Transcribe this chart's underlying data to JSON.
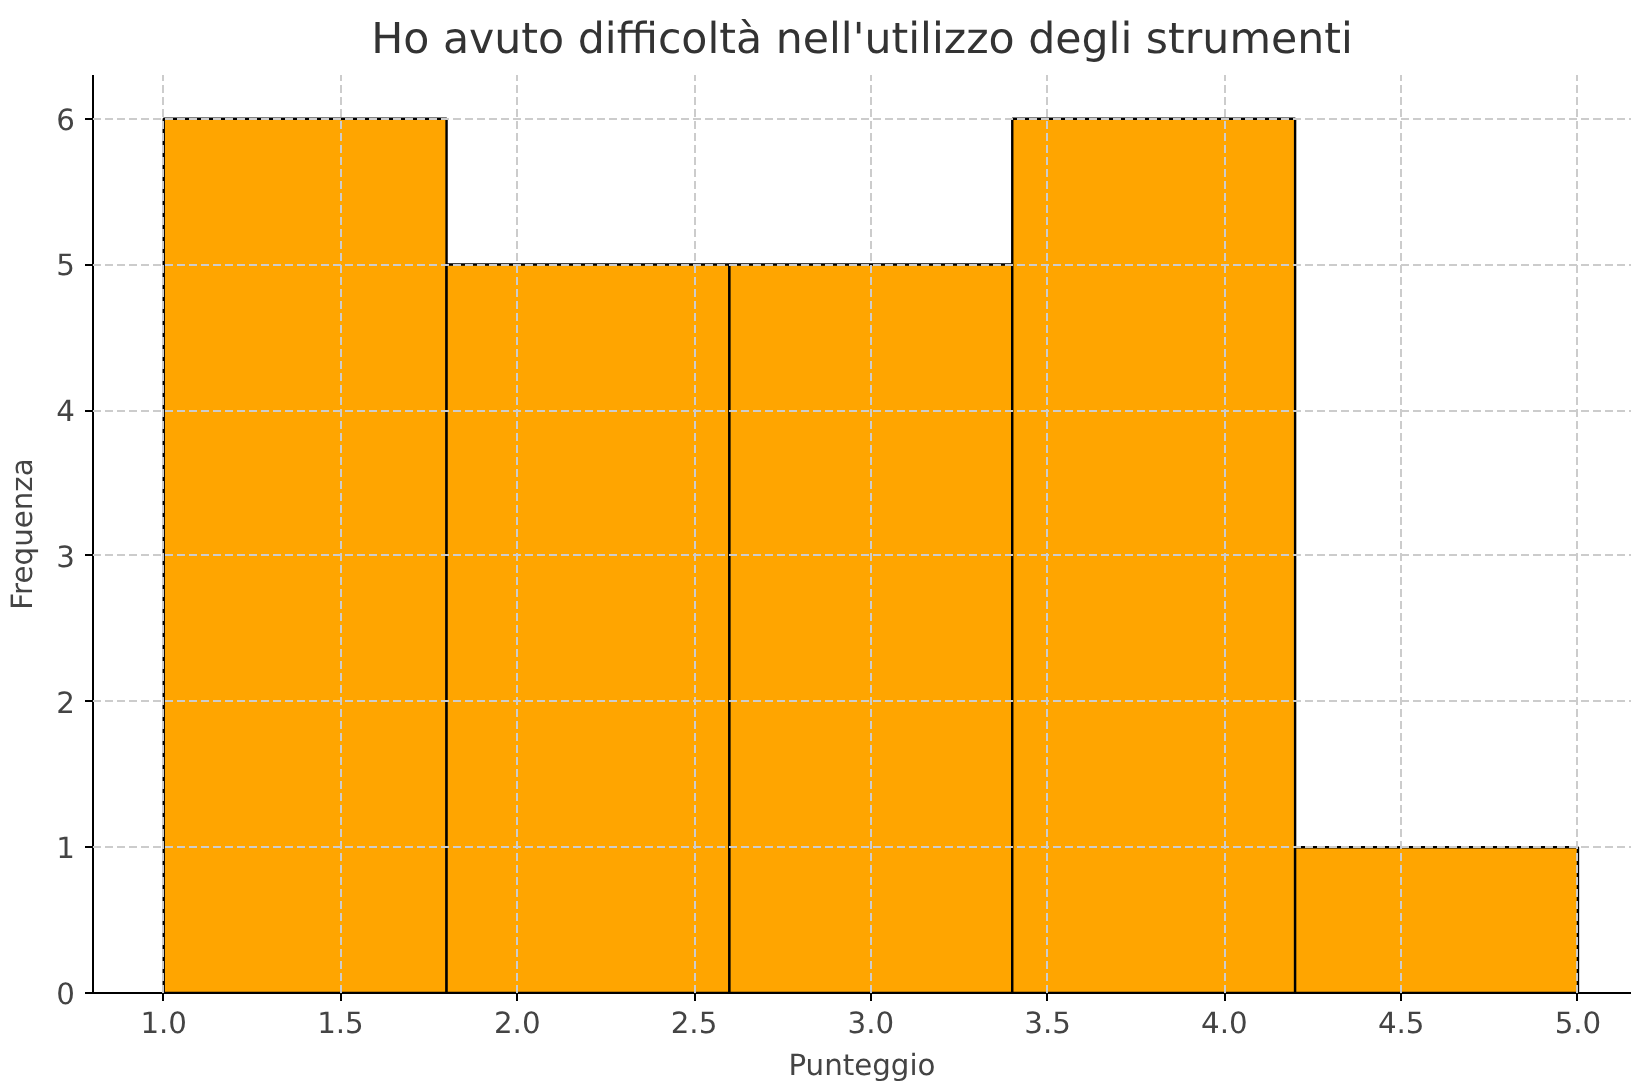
{
  "chart_data": {
    "type": "histogram",
    "title": "Ho avuto difficoltà nell'utilizzo degli strumenti",
    "xlabel": "Punteggio",
    "ylabel": "Frequenza",
    "bins": [
      1.0,
      1.8,
      2.6,
      3.4,
      4.2,
      5.0
    ],
    "values": [
      6,
      5,
      5,
      6,
      1
    ],
    "color": "#ffa500",
    "xlim": [
      0.8,
      5.15
    ],
    "ylim": [
      0,
      6.3
    ],
    "xticks": [
      {
        "value": 1.0,
        "label": "1.0"
      },
      {
        "value": 1.5,
        "label": "1.5"
      },
      {
        "value": 2.0,
        "label": "2.0"
      },
      {
        "value": 2.5,
        "label": "2.5"
      },
      {
        "value": 3.0,
        "label": "3.0"
      },
      {
        "value": 3.5,
        "label": "3.5"
      },
      {
        "value": 4.0,
        "label": "4.0"
      },
      {
        "value": 4.5,
        "label": "4.5"
      },
      {
        "value": 5.0,
        "label": "5.0"
      }
    ],
    "yticks": [
      0,
      1,
      2,
      3,
      4,
      5,
      6
    ],
    "grid": true
  }
}
